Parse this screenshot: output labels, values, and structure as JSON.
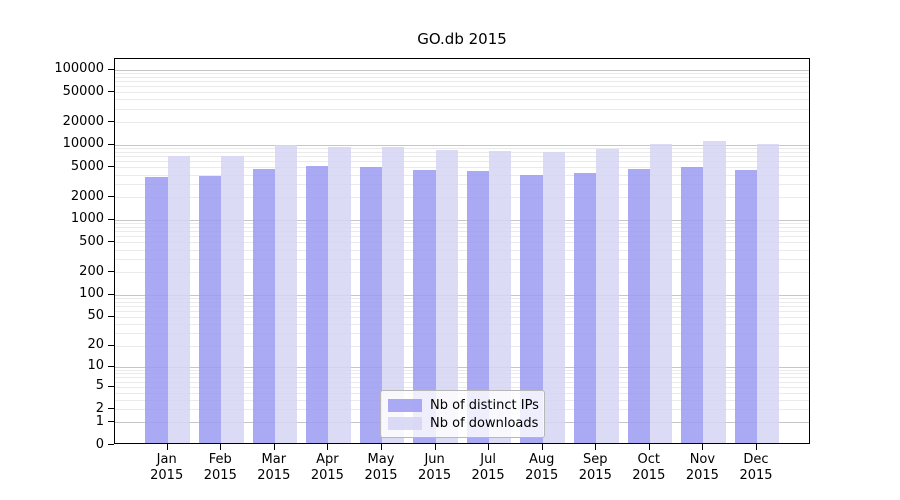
{
  "title": "GO.db 2015",
  "chart_data": {
    "type": "bar",
    "title": "GO.db 2015",
    "scale": "log1p",
    "grid": true,
    "legend_position": "bottom-center",
    "ylim": [
      0,
      128000
    ],
    "categories": [
      [
        "Jan",
        "2015"
      ],
      [
        "Feb",
        "2015"
      ],
      [
        "Mar",
        "2015"
      ],
      [
        "Apr",
        "2015"
      ],
      [
        "May",
        "2015"
      ],
      [
        "Jun",
        "2015"
      ],
      [
        "Jul",
        "2015"
      ],
      [
        "Aug",
        "2015"
      ],
      [
        "Sep",
        "2015"
      ],
      [
        "Oct",
        "2015"
      ],
      [
        "Nov",
        "2015"
      ],
      [
        "Dec",
        "2015"
      ]
    ],
    "series": [
      {
        "name": "Nb of distinct IPs",
        "color": "rgba(155,155,242,0.85)",
        "values": [
          3500,
          3600,
          4500,
          4900,
          4800,
          4300,
          4200,
          3700,
          4000,
          4500,
          4800,
          4300
        ]
      },
      {
        "name": "Nb of downloads",
        "color": "rgba(213,213,245,0.85)",
        "values": [
          6600,
          6700,
          9400,
          8800,
          8800,
          8100,
          7700,
          7400,
          8200,
          9500,
          10600,
          9600
        ]
      }
    ],
    "y_ticks": [
      {
        "label": "100000",
        "value": 100000
      },
      {
        "label": "50000",
        "value": 50000
      },
      {
        "label": "20000",
        "value": 20000
      },
      {
        "label": "10000",
        "value": 10000
      },
      {
        "label": "5000",
        "value": 5000
      },
      {
        "label": "2000",
        "value": 2000
      },
      {
        "label": "1000",
        "value": 1000
      },
      {
        "label": "500",
        "value": 500
      },
      {
        "label": "200",
        "value": 200
      },
      {
        "label": "100",
        "value": 100
      },
      {
        "label": "50",
        "value": 50
      },
      {
        "label": "20",
        "value": 20
      },
      {
        "label": "10",
        "value": 10
      },
      {
        "label": "5",
        "value": 5
      },
      {
        "label": "2",
        "value": 2
      },
      {
        "label": "1",
        "value": 1
      },
      {
        "label": "0",
        "value": 0
      }
    ]
  },
  "colors": {
    "major_grid": "#c6c6c6",
    "minor_grid": "#eaeaea",
    "axis": "#000000",
    "legend_border": "#b7b7b7",
    "legend_bg": "rgba(255,255,255,0.8)"
  }
}
